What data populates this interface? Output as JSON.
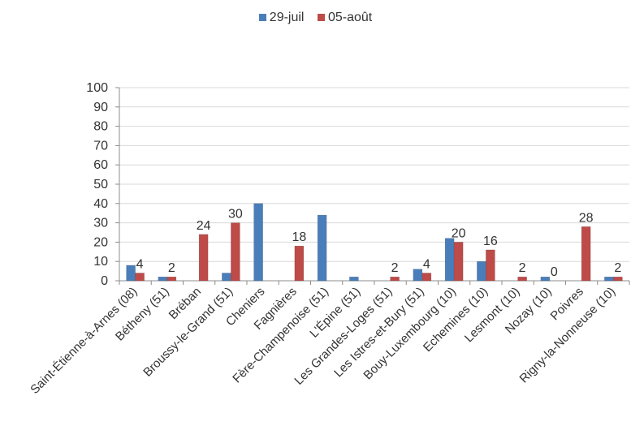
{
  "chart_data": {
    "type": "bar",
    "title": "",
    "xlabel": "",
    "ylabel": "",
    "ylim": [
      0,
      100
    ],
    "yticks": [
      0,
      10,
      20,
      30,
      40,
      50,
      60,
      70,
      80,
      90,
      100
    ],
    "grid": true,
    "legend_position": "top",
    "categories": [
      "Saint-Étienne-à-Arnes (08)",
      "Bétheny (51)",
      "Bréban",
      "Broussy-le-Grand (51)",
      "Cheniers",
      "Fagnières",
      "Fère-Champenoise (51)",
      "L'Épine (51)",
      "Les Grandes-Loges (51)",
      "Les Istres-et-Bury (51)",
      "Bouy-Luxembourg (10)",
      "Echemines (10)",
      "Lesmont (10)",
      "Nozay (10)",
      "Poivres",
      "Rigny-la-Nonneuse (10)"
    ],
    "series": [
      {
        "name": "29-juil",
        "color": "#4a7ebb",
        "values": [
          8,
          2,
          0,
          4,
          40,
          0,
          34,
          2,
          0,
          6,
          22,
          10,
          0,
          2,
          0,
          2
        ],
        "labels": [
          null,
          null,
          null,
          null,
          null,
          null,
          null,
          null,
          null,
          null,
          null,
          null,
          null,
          null,
          null,
          null
        ]
      },
      {
        "name": "05-août",
        "color": "#be4b48",
        "values": [
          4,
          2,
          24,
          30,
          0,
          18,
          0,
          0,
          2,
          4,
          20,
          16,
          2,
          0,
          28,
          2
        ],
        "labels": [
          "4",
          "2",
          "24",
          "30",
          null,
          "18",
          null,
          null,
          "2",
          "4",
          "20",
          "16",
          "2",
          "0",
          "28",
          "2"
        ]
      }
    ]
  }
}
